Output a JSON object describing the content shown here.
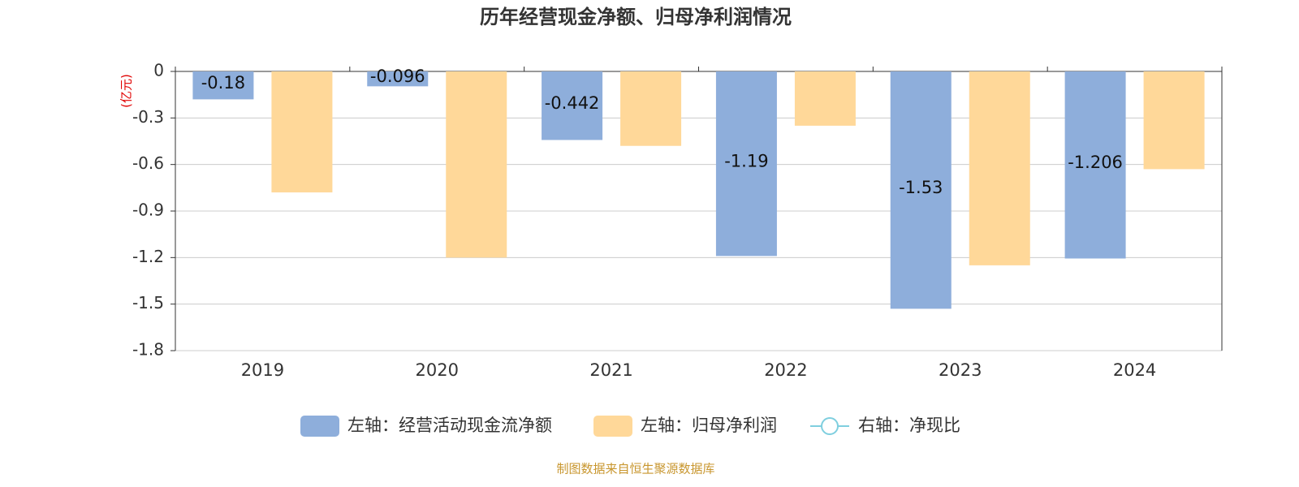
{
  "chart_data": {
    "type": "bar",
    "title": "历年经营现金净额、归母净利润情况",
    "y_label": "(亿元)",
    "source": "制图数据来自恒生聚源数据库",
    "categories": [
      "2019",
      "2020",
      "2021",
      "2022",
      "2023",
      "2024"
    ],
    "series": [
      {
        "name": "左轴：经营活动现金流净额",
        "color": "#8eaedb",
        "values": [
          -0.18,
          -0.096,
          -0.442,
          -1.19,
          -1.53,
          -1.206
        ]
      },
      {
        "name": "左轴：归母净利润",
        "color": "#ffd899",
        "values": [
          -0.78,
          -1.2,
          -0.48,
          -0.35,
          -1.25,
          -0.63
        ]
      },
      {
        "name": "右轴：净现比",
        "color": "#7fcfdf",
        "type": "line",
        "axis": "y2",
        "values": [
          null,
          null,
          null,
          null,
          null,
          null
        ]
      }
    ],
    "ylim": [
      -1.8,
      0
    ],
    "yticks": [
      0,
      -0.3,
      -0.6,
      -0.9,
      -1.2,
      -1.5,
      -1.8
    ],
    "grid": true
  }
}
